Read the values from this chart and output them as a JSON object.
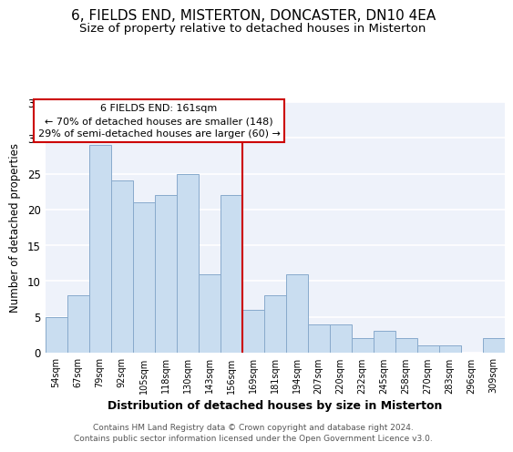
{
  "title": "6, FIELDS END, MISTERTON, DONCASTER, DN10 4EA",
  "subtitle": "Size of property relative to detached houses in Misterton",
  "xlabel": "Distribution of detached houses by size in Misterton",
  "ylabel": "Number of detached properties",
  "bar_labels": [
    "54sqm",
    "67sqm",
    "79sqm",
    "92sqm",
    "105sqm",
    "118sqm",
    "130sqm",
    "143sqm",
    "156sqm",
    "169sqm",
    "181sqm",
    "194sqm",
    "207sqm",
    "220sqm",
    "232sqm",
    "245sqm",
    "258sqm",
    "270sqm",
    "283sqm",
    "296sqm",
    "309sqm"
  ],
  "bar_values": [
    5,
    8,
    29,
    24,
    21,
    22,
    25,
    11,
    22,
    6,
    8,
    11,
    4,
    4,
    2,
    3,
    2,
    1,
    1,
    0,
    2
  ],
  "bar_color": "#c9ddf0",
  "bar_edge_color": "#88aacc",
  "vline_x": 8.5,
  "vline_color": "#cc0000",
  "ylim": [
    0,
    35
  ],
  "yticks": [
    0,
    5,
    10,
    15,
    20,
    25,
    30,
    35
  ],
  "annotation_title": "6 FIELDS END: 161sqm",
  "annotation_line1": "← 70% of detached houses are smaller (148)",
  "annotation_line2": "29% of semi-detached houses are larger (60) →",
  "annotation_box_color": "#ffffff",
  "annotation_box_edge": "#cc0000",
  "footer1": "Contains HM Land Registry data © Crown copyright and database right 2024.",
  "footer2": "Contains public sector information licensed under the Open Government Licence v3.0.",
  "background_color": "#eef2fa",
  "plot_bg_color": "#eef2fa",
  "grid_color": "#ffffff",
  "title_fontsize": 11,
  "subtitle_fontsize": 9.5
}
